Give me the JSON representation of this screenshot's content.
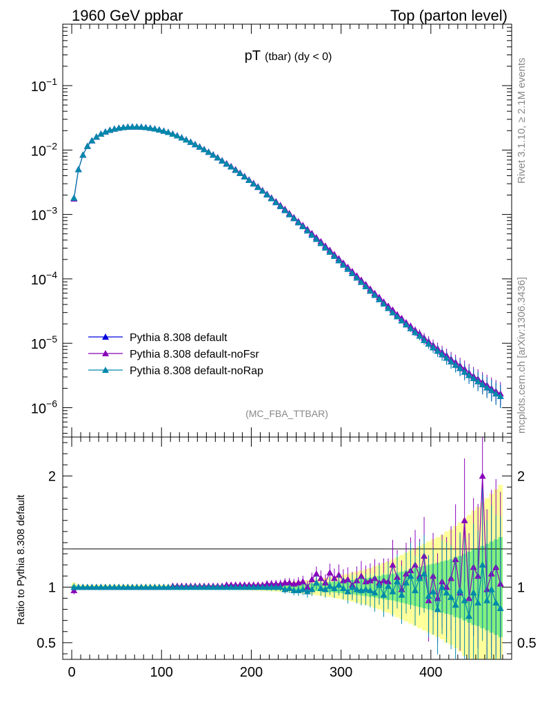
{
  "header": {
    "left": "1960 GeV ppbar",
    "right": "Top (parton level)"
  },
  "side": {
    "rivet": "Rivet 3.1.10, ≥ 2.1M events",
    "mcplots": "mcplots.cern.ch [arXiv:1306.3436]"
  },
  "plot_title": {
    "main": "pT",
    "sub": "(tbar) (dy < 0)"
  },
  "watermark": "(MC_FBA_TTBAR)",
  "ratio_ylabel": "Ratio to Pythia 8.308 default",
  "chart_data": [
    {
      "type": "line",
      "log_y": true,
      "xlim": [
        -10,
        490
      ],
      "ylim": [
        3.5e-07,
        0.9
      ],
      "y_ticks": [
        {
          "value": 1e-06,
          "label_base": "10",
          "label_exp": "−6"
        },
        {
          "value": 1e-05,
          "label_base": "10",
          "label_exp": "−5"
        },
        {
          "value": 0.0001,
          "label_base": "10",
          "label_exp": "−4"
        },
        {
          "value": 0.001,
          "label_base": "10",
          "label_exp": "−3"
        },
        {
          "value": 0.01,
          "label_base": "10",
          "label_exp": "−2"
        },
        {
          "value": 0.1,
          "label_base": "10",
          "label_exp": "−1"
        }
      ],
      "x": [
        2.5,
        7.5,
        12.5,
        17.5,
        22.5,
        27.5,
        32.5,
        37.5,
        42.5,
        47.5,
        52.5,
        57.5,
        62.5,
        67.5,
        72.5,
        77.5,
        82.5,
        87.5,
        92.5,
        97.5,
        102.5,
        107.5,
        112.5,
        117.5,
        122.5,
        127.5,
        132.5,
        137.5,
        142.5,
        147.5,
        152.5,
        157.5,
        162.5,
        167.5,
        172.5,
        177.5,
        182.5,
        187.5,
        192.5,
        197.5,
        202.5,
        207.5,
        212.5,
        217.5,
        222.5,
        227.5,
        232.5,
        237.5,
        242.5,
        247.5,
        252.5,
        257.5,
        262.5,
        267.5,
        272.5,
        277.5,
        282.5,
        287.5,
        292.5,
        297.5,
        302.5,
        307.5,
        312.5,
        317.5,
        322.5,
        327.5,
        332.5,
        337.5,
        342.5,
        347.5,
        352.5,
        357.5,
        362.5,
        367.5,
        372.5,
        377.5,
        382.5,
        387.5,
        392.5,
        397.5,
        402.5,
        407.5,
        412.5,
        417.5,
        422.5,
        427.5,
        432.5,
        437.5,
        442.5,
        447.5,
        452.5,
        457.5,
        462.5,
        467.5,
        472.5,
        477.5
      ],
      "series": [
        {
          "name": "Pythia 8.308 default",
          "color": "#0000dd",
          "values": [
            0.0018,
            0.005,
            0.0084,
            0.0115,
            0.014,
            0.016,
            0.0178,
            0.0192,
            0.0204,
            0.0213,
            0.022,
            0.0225,
            0.0228,
            0.023,
            0.023,
            0.0228,
            0.0225,
            0.022,
            0.0214,
            0.0207,
            0.0198,
            0.0189,
            0.0178,
            0.0167,
            0.0155,
            0.0144,
            0.0133,
            0.0122,
            0.0112,
            0.0102,
            0.0093,
            0.0084,
            0.0076,
            0.0068,
            0.0061,
            0.0055,
            0.0049,
            0.00435,
            0.00385,
            0.0034,
            0.003,
            0.00265,
            0.00232,
            0.00203,
            0.00177,
            0.00154,
            0.00134,
            0.00116,
            0.001,
            0.00087,
            0.00075,
            0.00065,
            0.00056,
            0.00048,
            0.000415,
            0.000355,
            0.000305,
            0.000262,
            0.000225,
            0.000193,
            0.000165,
            0.000142,
            0.000122,
            0.000104,
            8.9e-05,
            7.6e-05,
            6.5e-05,
            5.6e-05,
            4.8e-05,
            4.1e-05,
            3.5e-05,
            3e-05,
            2.6e-05,
            2.25e-05,
            1.95e-05,
            1.7e-05,
            1.48e-05,
            1.3e-05,
            1.12e-05,
            9.8e-06,
            8.6e-06,
            7.6e-06,
            6.7e-06,
            5.9e-06,
            5.2e-06,
            4.6e-06,
            4.1e-06,
            3.6e-06,
            3.2e-06,
            2.85e-06,
            2.55e-06,
            2.3e-06,
            2.05e-06,
            1.85e-06,
            1.65e-06,
            1.5e-06
          ]
        },
        {
          "name": "Pythia 8.308 default-noFsr",
          "color": "#8800bb",
          "values": [
            0.00175,
            0.005,
            0.0084,
            0.0115,
            0.014,
            0.016,
            0.0178,
            0.0192,
            0.0204,
            0.0213,
            0.022,
            0.0225,
            0.0228,
            0.023,
            0.023,
            0.0228,
            0.0225,
            0.022,
            0.0214,
            0.0207,
            0.0198,
            0.0189,
            0.0179,
            0.0168,
            0.0156,
            0.0145,
            0.0134,
            0.0123,
            0.0113,
            0.0103,
            0.0094,
            0.0085,
            0.0077,
            0.0069,
            0.0062,
            0.0056,
            0.005,
            0.00443,
            0.00392,
            0.00347,
            0.00306,
            0.00271,
            0.00237,
            0.00208,
            0.00182,
            0.00159,
            0.00139,
            0.00121,
            0.00104,
            0.0009,
            0.00078,
            0.00068,
            0.00059,
            0.00051,
            0.00044,
            0.00038,
            0.000325,
            0.00028,
            0.00024,
            0.000207,
            0.000177,
            0.000152,
            0.000131,
            0.000112,
            9.6e-05,
            8.2e-05,
            7e-05,
            6e-05,
            5.2e-05,
            4.4e-05,
            3.8e-05,
            3.3e-05,
            2.8e-05,
            2.45e-05,
            2.1e-05,
            1.85e-05,
            1.6e-05,
            1.42e-05,
            1.22e-05,
            1.07e-05,
            9.4e-06,
            8.3e-06,
            7.3e-06,
            6.5e-06,
            5.7e-06,
            5.1e-06,
            4.5e-06,
            4e-06,
            3.5e-06,
            3.1e-06,
            2.8e-06,
            2.5e-06,
            2.25e-06,
            2e-06,
            1.8e-06,
            1.65e-06
          ]
        },
        {
          "name": "Pythia 8.308 default-noRap",
          "color": "#0088aa",
          "values": [
            0.0018,
            0.005,
            0.0084,
            0.0115,
            0.014,
            0.016,
            0.0178,
            0.0192,
            0.0204,
            0.0213,
            0.022,
            0.0225,
            0.0228,
            0.023,
            0.023,
            0.0228,
            0.0225,
            0.022,
            0.0214,
            0.0207,
            0.0198,
            0.0189,
            0.0178,
            0.0167,
            0.0155,
            0.0144,
            0.0133,
            0.0122,
            0.0112,
            0.0102,
            0.0093,
            0.0084,
            0.0076,
            0.0068,
            0.0061,
            0.0055,
            0.0049,
            0.00435,
            0.00385,
            0.0034,
            0.003,
            0.00265,
            0.00232,
            0.00203,
            0.00177,
            0.00154,
            0.00134,
            0.00116,
            0.001,
            0.00087,
            0.00075,
            0.00065,
            0.00056,
            0.00048,
            0.000415,
            0.000355,
            0.000305,
            0.000262,
            0.000225,
            0.000193,
            0.000165,
            0.000142,
            0.000122,
            0.000104,
            8.9e-05,
            7.6e-05,
            6.5e-05,
            5.6e-05,
            4.8e-05,
            4.1e-05,
            3.5e-05,
            3e-05,
            2.6e-05,
            2.25e-05,
            1.95e-05,
            1.7e-05,
            1.48e-05,
            1.3e-05,
            1.12e-05,
            9.8e-06,
            8.6e-06,
            7.6e-06,
            6.7e-06,
            5.9e-06,
            5.2e-06,
            4.6e-06,
            4.1e-06,
            3.6e-06,
            3.2e-06,
            2.85e-06,
            2.55e-06,
            2.3e-06,
            2.05e-06,
            1.85e-06,
            1.65e-06,
            1.5e-06
          ]
        }
      ]
    },
    {
      "type": "line",
      "xlim": [
        -10,
        490
      ],
      "ylim": [
        0.35,
        2.35
      ],
      "x_ticks": [
        0,
        100,
        200,
        300,
        400
      ],
      "y_ticks": [
        {
          "value": 0.5,
          "label": "0.5"
        },
        {
          "value": 1,
          "label": "1"
        },
        {
          "value": 2,
          "label": "2"
        }
      ],
      "band_colors": {
        "inner": "#7ff07f",
        "outer": "#ffff99"
      },
      "x": [
        2.5,
        7.5,
        12.5,
        17.5,
        22.5,
        27.5,
        32.5,
        37.5,
        42.5,
        47.5,
        52.5,
        57.5,
        62.5,
        67.5,
        72.5,
        77.5,
        82.5,
        87.5,
        92.5,
        97.5,
        102.5,
        107.5,
        112.5,
        117.5,
        122.5,
        127.5,
        132.5,
        137.5,
        142.5,
        147.5,
        152.5,
        157.5,
        162.5,
        167.5,
        172.5,
        177.5,
        182.5,
        187.5,
        192.5,
        197.5,
        202.5,
        207.5,
        212.5,
        217.5,
        222.5,
        227.5,
        232.5,
        237.5,
        242.5,
        247.5,
        252.5,
        257.5,
        262.5,
        267.5,
        272.5,
        277.5,
        282.5,
        287.5,
        292.5,
        297.5,
        302.5,
        307.5,
        312.5,
        317.5,
        322.5,
        327.5,
        332.5,
        337.5,
        342.5,
        347.5,
        352.5,
        357.5,
        362.5,
        367.5,
        372.5,
        377.5,
        382.5,
        387.5,
        392.5,
        397.5,
        402.5,
        407.5,
        412.5,
        417.5,
        422.5,
        427.5,
        432.5,
        437.5,
        442.5,
        447.5,
        452.5,
        457.5,
        462.5,
        467.5,
        472.5,
        477.5
      ],
      "band_inner": [
        0.02,
        0.01,
        0.01,
        0.01,
        0.01,
        0.01,
        0.01,
        0.01,
        0.01,
        0.01,
        0.01,
        0.01,
        0.01,
        0.01,
        0.01,
        0.01,
        0.01,
        0.01,
        0.01,
        0.01,
        0.01,
        0.01,
        0.01,
        0.01,
        0.01,
        0.01,
        0.01,
        0.01,
        0.01,
        0.01,
        0.01,
        0.01,
        0.01,
        0.01,
        0.012,
        0.012,
        0.012,
        0.013,
        0.013,
        0.014,
        0.015,
        0.015,
        0.016,
        0.017,
        0.018,
        0.019,
        0.02,
        0.021,
        0.023,
        0.025,
        0.027,
        0.029,
        0.031,
        0.033,
        0.036,
        0.039,
        0.042,
        0.045,
        0.048,
        0.052,
        0.056,
        0.06,
        0.065,
        0.07,
        0.075,
        0.081,
        0.087,
        0.094,
        0.1,
        0.11,
        0.115,
        0.12,
        0.13,
        0.14,
        0.15,
        0.16,
        0.17,
        0.18,
        0.19,
        0.2,
        0.21,
        0.22,
        0.23,
        0.24,
        0.25,
        0.27,
        0.28,
        0.3,
        0.32,
        0.34,
        0.35,
        0.37,
        0.39,
        0.41,
        0.43,
        0.45
      ],
      "band_outer": [
        0.04,
        0.02,
        0.02,
        0.02,
        0.02,
        0.02,
        0.02,
        0.02,
        0.02,
        0.02,
        0.02,
        0.02,
        0.02,
        0.02,
        0.02,
        0.02,
        0.02,
        0.02,
        0.02,
        0.02,
        0.02,
        0.02,
        0.02,
        0.02,
        0.02,
        0.02,
        0.02,
        0.02,
        0.02,
        0.02,
        0.02,
        0.02,
        0.02,
        0.02,
        0.024,
        0.024,
        0.025,
        0.026,
        0.027,
        0.028,
        0.03,
        0.031,
        0.033,
        0.035,
        0.037,
        0.039,
        0.041,
        0.044,
        0.047,
        0.05,
        0.054,
        0.058,
        0.062,
        0.067,
        0.072,
        0.078,
        0.084,
        0.09,
        0.097,
        0.104,
        0.112,
        0.12,
        0.13,
        0.14,
        0.15,
        0.16,
        0.17,
        0.19,
        0.2,
        0.22,
        0.23,
        0.25,
        0.27,
        0.29,
        0.31,
        0.33,
        0.35,
        0.37,
        0.39,
        0.41,
        0.43,
        0.45,
        0.47,
        0.5,
        0.52,
        0.55,
        0.58,
        0.62,
        0.65,
        0.69,
        0.72,
        0.76,
        0.8,
        0.84,
        0.88,
        0.92
      ],
      "series": [
        {
          "name": "Pythia 8.308 default",
          "color": "#0000dd",
          "values": [
            1,
            1,
            1,
            1,
            1,
            1,
            1,
            1,
            1,
            1,
            1,
            1,
            1,
            1,
            1,
            1,
            1,
            1,
            1,
            1,
            1,
            1,
            1,
            1,
            1,
            1,
            1,
            1,
            1,
            1,
            1,
            1,
            1,
            1,
            1,
            1,
            1,
            1,
            1,
            1,
            1,
            1,
            1,
            1,
            1,
            1,
            1,
            1,
            1,
            1,
            1,
            1,
            1,
            1,
            1,
            1,
            1,
            1,
            1,
            1,
            1,
            1,
            1,
            1,
            1,
            1,
            1,
            1,
            1,
            1,
            1,
            1,
            1,
            1,
            1,
            1,
            1,
            1,
            1,
            1,
            1,
            1,
            1,
            1,
            1,
            1,
            1,
            1,
            1,
            1,
            1,
            1,
            1,
            1,
            1,
            1
          ]
        },
        {
          "name": "Pythia 8.308 default-noFsr",
          "color": "#8800bb",
          "values": [
            0.97,
            1.0,
            1.0,
            1.0,
            1.0,
            1.0,
            1.0,
            1.0,
            1.0,
            1.0,
            1.0,
            1.0,
            1.0,
            1.0,
            1.0,
            1.0,
            1.0,
            1.0,
            1.0,
            1.0,
            1.0,
            1.0,
            1.01,
            1.01,
            1.01,
            1.01,
            1.01,
            1.01,
            1.01,
            1.01,
            1.01,
            1.01,
            1.01,
            1.01,
            1.02,
            1.02,
            1.02,
            1.02,
            1.02,
            1.02,
            1.02,
            1.02,
            1.02,
            1.03,
            1.03,
            1.03,
            1.03,
            1.04,
            1.04,
            1.03,
            1.04,
            1.05,
            1.0,
            1.07,
            1.12,
            1.08,
            1.04,
            1.13,
            1.08,
            1.11,
            1.06,
            1.07,
            1.02,
            1.06,
            1.1,
            1.05,
            1.06,
            1.08,
            1.04,
            1.06,
            1.05,
            1.2,
            1.09,
            0.98,
            1.12,
            1.15,
            1.2,
            1.1,
            1.28,
            0.88,
            1.1,
            0.9,
            1.05,
            1.0,
            1.08,
            1.25,
            0.95,
            1.6,
            0.9,
            1.18,
            1.1,
            2.0,
            0.98,
            1.12,
            1.18,
            1.03
          ]
        },
        {
          "name": "Pythia 8.308 default-noRap",
          "color": "#0088aa",
          "values": [
            1.0,
            1.0,
            1.0,
            1.0,
            1.0,
            1.0,
            1.0,
            1.0,
            1.0,
            1.0,
            1.0,
            1.0,
            1.0,
            1.0,
            1.0,
            1.0,
            1.0,
            1.0,
            1.0,
            1.0,
            1.0,
            1.0,
            1.0,
            1.0,
            1.0,
            1.0,
            1.0,
            1.0,
            1.0,
            1.0,
            1.0,
            1.0,
            1.0,
            1.0,
            1.0,
            1.0,
            1.0,
            1.0,
            1.0,
            1.0,
            1.0,
            1.0,
            1.0,
            1.0,
            1.0,
            1.0,
            1.0,
            0.98,
            0.99,
            0.97,
            0.97,
            0.98,
            0.96,
            0.98,
            1.04,
            0.99,
            0.98,
            1.01,
            0.99,
            1.02,
            0.99,
            0.96,
            1.0,
            0.98,
            0.97,
            0.98,
            0.97,
            0.95,
            1.02,
            0.93,
            1.01,
            0.96,
            1.05,
            0.93,
            1.04,
            1.1,
            0.97,
            1.08,
            1.12,
            0.92,
            0.96,
            0.8,
            1.0,
            0.95,
            0.91,
            0.84,
            0.97,
            0.88,
            0.74,
            0.95,
            0.86,
            1.2,
            0.88,
            0.98,
            0.86,
            0.81
          ]
        }
      ]
    }
  ]
}
